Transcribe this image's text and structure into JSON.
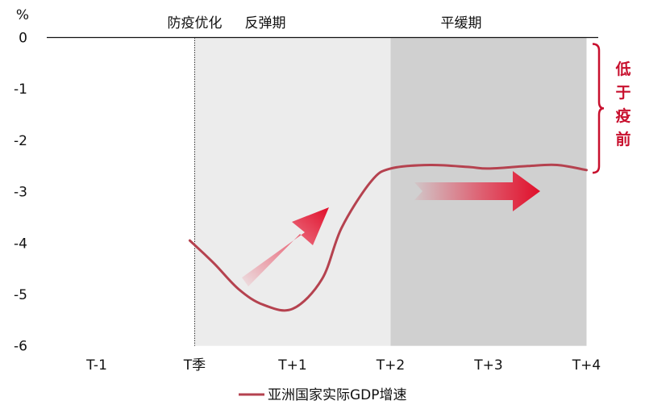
{
  "chart_data": {
    "type": "line",
    "ylabel": "%",
    "ylim": [
      -6,
      0
    ],
    "yticks": [
      "0",
      "-1",
      "-2",
      "-3",
      "-4",
      "-5",
      "-6"
    ],
    "categories": [
      "T-1",
      "T季",
      "T+1",
      "T+2",
      "T+3",
      "T+4"
    ],
    "series": [
      {
        "name": "亚洲国家实际GDP增速",
        "x": [
          -0.05,
          0.2,
          0.45,
          0.7,
          1.0,
          1.3,
          1.5,
          1.8,
          2.0,
          2.4,
          2.8,
          3.0,
          3.4,
          3.7,
          4.0
        ],
        "y": [
          -3.95,
          -4.4,
          -4.9,
          -5.2,
          -5.28,
          -4.7,
          -3.7,
          -2.8,
          -2.55,
          -2.48,
          -2.52,
          -2.55,
          -2.5,
          -2.48,
          -2.58
        ]
      }
    ],
    "phases": [
      {
        "label": "防疫优化",
        "x": 0
      },
      {
        "label": "反弹期",
        "from": 0,
        "to": 2
      },
      {
        "label": "平缓期",
        "from": 2,
        "to": 4
      }
    ],
    "annotation": {
      "label": [
        "低",
        "于",
        "疫",
        "前"
      ],
      "from": 0,
      "to": -2.6
    },
    "colors": {
      "line": "#b5424f",
      "accent": "#c8102e",
      "shade_rebound": "#ececec",
      "shade_plateau": "#d0d0d0"
    },
    "legend_position": "bottom"
  }
}
